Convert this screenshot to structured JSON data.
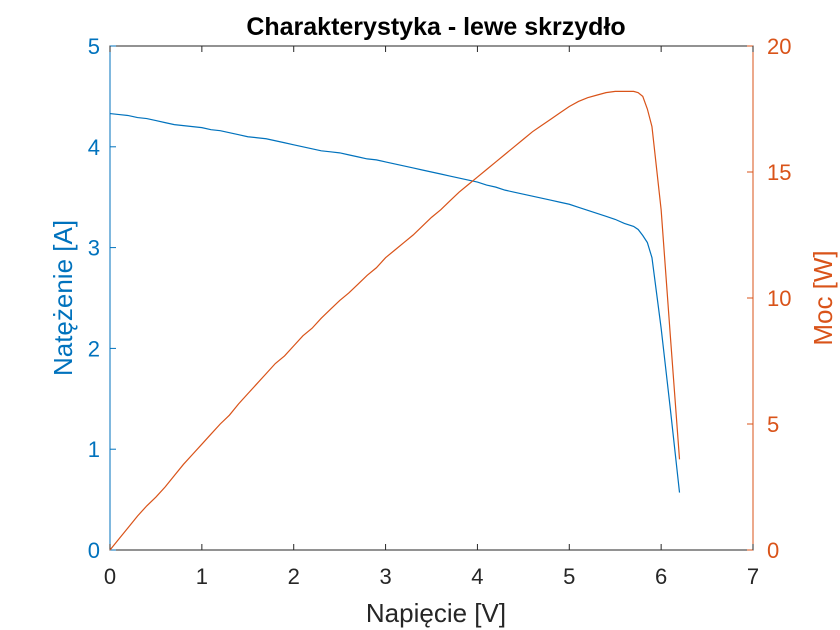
{
  "chart_data": {
    "type": "line",
    "title": "Charakterystyka - lewe skrzydło",
    "xlabel": "Napięcie [V]",
    "ylabel_left": "Natężenie [A]",
    "ylabel_right": "Moc [W]",
    "xlim": [
      0,
      7
    ],
    "ylim_left": [
      0,
      5
    ],
    "ylim_right": [
      0,
      20
    ],
    "xticks": [
      "0",
      "1",
      "2",
      "3",
      "4",
      "5",
      "6",
      "7"
    ],
    "yticks_left": [
      "0",
      "1",
      "2",
      "3",
      "4",
      "5"
    ],
    "yticks_right": [
      "0",
      "5",
      "10",
      "15",
      "20"
    ],
    "grid": false,
    "colors": {
      "current": "#0072BD",
      "power": "#D95319",
      "axes": "#262626"
    },
    "series": [
      {
        "axis": "left",
        "color": "#0072BD",
        "x": [
          0,
          0.1,
          0.2,
          0.3,
          0.4,
          0.5,
          0.6,
          0.7,
          0.8,
          0.9,
          1.0,
          1.1,
          1.2,
          1.3,
          1.4,
          1.5,
          1.6,
          1.7,
          1.8,
          1.9,
          2.0,
          2.1,
          2.2,
          2.3,
          2.4,
          2.5,
          2.6,
          2.7,
          2.8,
          2.9,
          3.0,
          3.1,
          3.2,
          3.3,
          3.4,
          3.5,
          3.6,
          3.7,
          3.8,
          3.9,
          4.0,
          4.1,
          4.2,
          4.3,
          4.4,
          4.5,
          4.6,
          4.7,
          4.8,
          4.9,
          5.0,
          5.1,
          5.2,
          5.3,
          5.4,
          5.5,
          5.6,
          5.7,
          5.75,
          5.8,
          5.85,
          5.9,
          6.0,
          6.1,
          6.2
        ],
        "y": [
          4.33,
          4.32,
          4.31,
          4.29,
          4.28,
          4.26,
          4.24,
          4.22,
          4.21,
          4.2,
          4.19,
          4.17,
          4.16,
          4.14,
          4.12,
          4.1,
          4.09,
          4.08,
          4.06,
          4.04,
          4.02,
          4.0,
          3.98,
          3.96,
          3.95,
          3.94,
          3.92,
          3.9,
          3.88,
          3.87,
          3.85,
          3.83,
          3.81,
          3.79,
          3.77,
          3.75,
          3.73,
          3.71,
          3.69,
          3.67,
          3.65,
          3.62,
          3.6,
          3.57,
          3.55,
          3.53,
          3.51,
          3.49,
          3.47,
          3.45,
          3.43,
          3.4,
          3.37,
          3.34,
          3.31,
          3.28,
          3.24,
          3.21,
          3.18,
          3.12,
          3.05,
          2.9,
          2.2,
          1.4,
          0.57
        ]
      },
      {
        "axis": "right",
        "color": "#D95319",
        "x": [
          0,
          0.1,
          0.2,
          0.3,
          0.4,
          0.5,
          0.6,
          0.7,
          0.8,
          0.9,
          1.0,
          1.1,
          1.2,
          1.3,
          1.4,
          1.5,
          1.6,
          1.7,
          1.8,
          1.9,
          2.0,
          2.1,
          2.2,
          2.3,
          2.4,
          2.5,
          2.6,
          2.7,
          2.8,
          2.9,
          3.0,
          3.1,
          3.2,
          3.3,
          3.4,
          3.5,
          3.6,
          3.7,
          3.8,
          3.9,
          4.0,
          4.1,
          4.2,
          4.3,
          4.4,
          4.5,
          4.6,
          4.7,
          4.8,
          4.9,
          5.0,
          5.1,
          5.2,
          5.3,
          5.4,
          5.5,
          5.6,
          5.7,
          5.75,
          5.8,
          5.85,
          5.9,
          6.0,
          6.1,
          6.2
        ],
        "y": [
          0,
          0.45,
          0.9,
          1.35,
          1.75,
          2.1,
          2.5,
          2.95,
          3.4,
          3.8,
          4.2,
          4.6,
          5.0,
          5.35,
          5.8,
          6.2,
          6.6,
          7.0,
          7.4,
          7.7,
          8.1,
          8.5,
          8.8,
          9.2,
          9.55,
          9.9,
          10.2,
          10.55,
          10.9,
          11.2,
          11.6,
          11.9,
          12.2,
          12.5,
          12.85,
          13.2,
          13.5,
          13.85,
          14.2,
          14.5,
          14.8,
          15.1,
          15.4,
          15.7,
          16.0,
          16.3,
          16.6,
          16.85,
          17.1,
          17.35,
          17.6,
          17.8,
          17.95,
          18.05,
          18.15,
          18.2,
          18.2,
          18.2,
          18.15,
          18.0,
          17.5,
          16.8,
          13.5,
          8.5,
          3.6
        ]
      }
    ]
  }
}
